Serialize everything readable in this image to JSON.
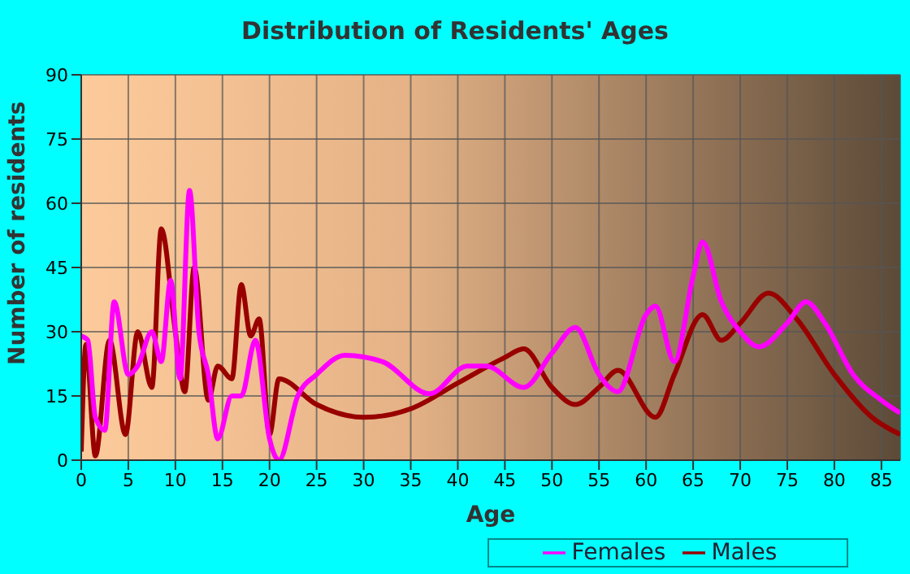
{
  "chart_data": {
    "type": "line",
    "title": "Distribution of Residents' Ages",
    "xlabel": "Age",
    "ylabel": "Number of residents",
    "xlim": [
      0,
      87
    ],
    "xticks": [
      0,
      5,
      10,
      15,
      20,
      25,
      30,
      35,
      40,
      45,
      50,
      55,
      60,
      65,
      70,
      75,
      80,
      85
    ],
    "ylim": [
      0,
      90
    ],
    "yticks": [
      0,
      15,
      30,
      45,
      60,
      75,
      90
    ],
    "grid": true,
    "legend": "bottom",
    "marker": "none",
    "line_style": "solid",
    "series": [
      {
        "name": "Males",
        "color": "#990000",
        "x": [
          0,
          0.5,
          1.5,
          3,
          4.7,
          6,
          7.5,
          8.5,
          10,
          11,
          12,
          13.5,
          14.5,
          16,
          17,
          18,
          18.9,
          20,
          21,
          25,
          30,
          35,
          40,
          45,
          47,
          50,
          52.5,
          55,
          57,
          61,
          63,
          66,
          68,
          70,
          73,
          76,
          80,
          84,
          87
        ],
        "values": [
          2,
          27,
          1,
          28,
          6,
          30,
          17,
          54,
          30,
          16,
          45,
          14,
          22,
          19,
          41,
          29,
          33,
          6,
          19,
          13,
          10,
          12,
          18,
          24,
          26,
          17,
          13,
          17,
          21,
          10,
          20,
          34,
          28,
          32,
          39,
          33,
          20,
          10,
          6
        ]
      },
      {
        "name": "Females",
        "color": "#ff00ff",
        "x": [
          0,
          0.7,
          1.5,
          2.5,
          3.5,
          5,
          6,
          7.5,
          8.5,
          9.5,
          10.5,
          11.5,
          12.5,
          13.5,
          14.5,
          16,
          17,
          18.5,
          20,
          21,
          23,
          25,
          28,
          32,
          37,
          41,
          43,
          47,
          50,
          52.5,
          55,
          57,
          60,
          61,
          63,
          65,
          66,
          68,
          70,
          72,
          75,
          77,
          79,
          82,
          85,
          87
        ],
        "values": [
          29,
          28,
          10,
          7,
          37,
          20,
          22,
          30,
          23,
          42,
          19,
          63,
          30,
          20,
          5,
          15,
          15,
          28,
          5,
          0,
          15,
          20,
          24.5,
          23,
          15.5,
          22,
          22,
          17,
          25,
          31,
          20,
          16,
          34,
          36,
          23,
          43,
          51,
          37,
          30,
          26.5,
          32,
          37,
          32,
          20,
          14,
          11
        ]
      }
    ]
  }
}
